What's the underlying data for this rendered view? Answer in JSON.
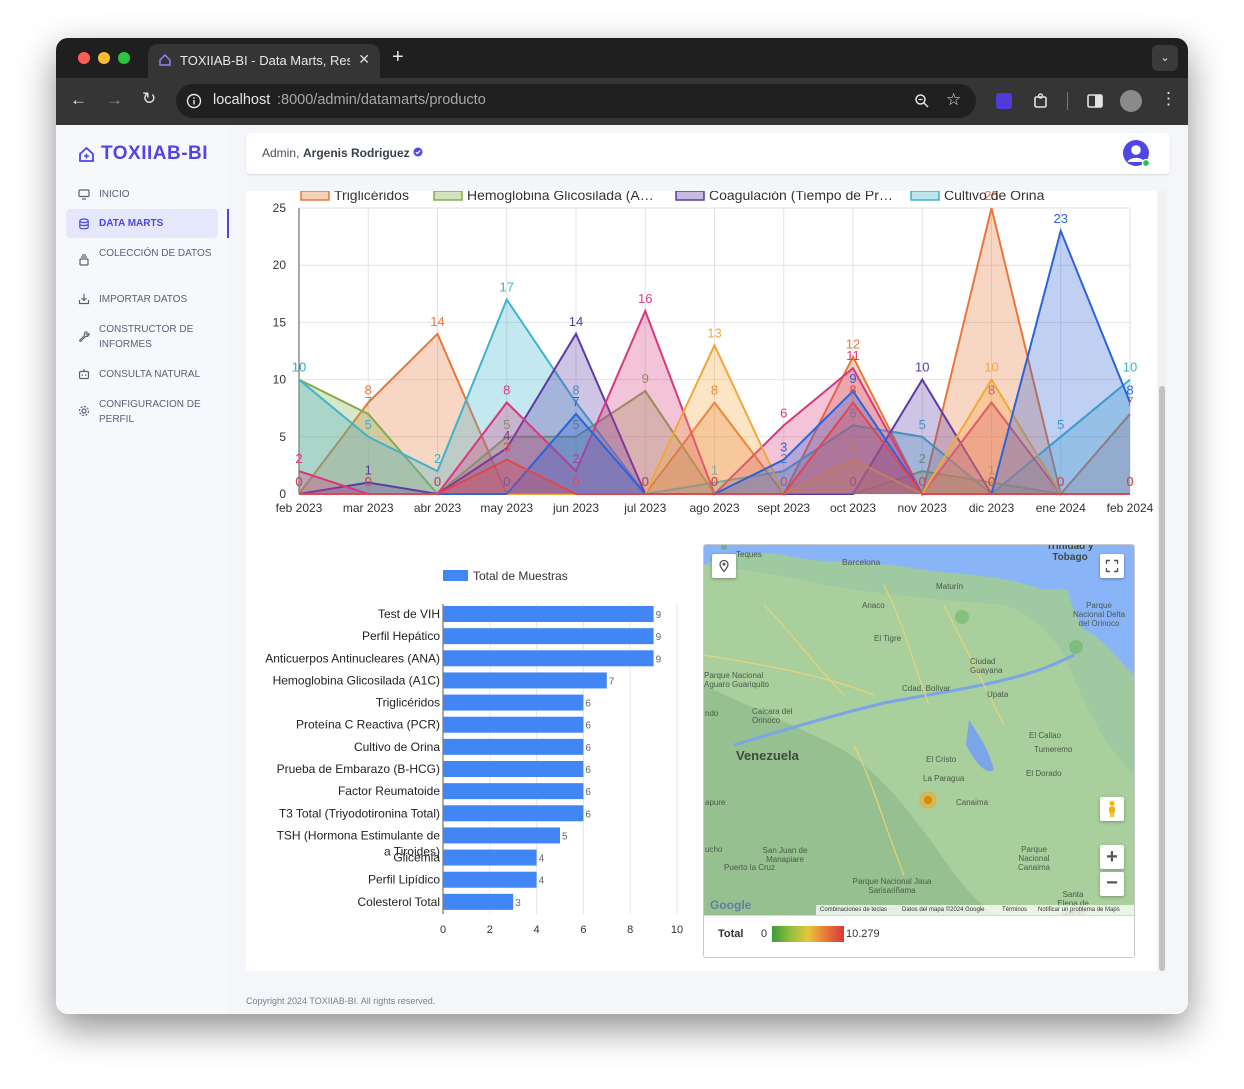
{
  "browser": {
    "tab_title": "TOXIIAB-BI - Data Marts, Res",
    "url_host": "localhost",
    "url_path": ":8000/admin/datamarts/producto"
  },
  "sidebar": {
    "logo": "TOXIIAB-BI",
    "items": [
      {
        "label": "INICIO",
        "icon": "monitor-icon"
      },
      {
        "label": "DATA MARTS",
        "icon": "database-icon",
        "active": true
      },
      {
        "label": "COLECCIÓN DE DATOS",
        "icon": "collection-icon"
      },
      {
        "label": "IMPORTAR DATOS",
        "icon": "import-icon"
      },
      {
        "label": "CONSTRUCTOR DE INFORMES",
        "icon": "wrench-icon"
      },
      {
        "label": "CONSULTA NATURAL",
        "icon": "bot-icon"
      },
      {
        "label": "CONFIGURACION DE PERFIL",
        "icon": "gear-icon"
      }
    ]
  },
  "header": {
    "greeting": "Admin,",
    "user": "Argenis Rodriguez"
  },
  "footer": "Copyright 2024 TOXIIAB-BI. All rights reserved.",
  "colors": {
    "accent": "#4f46e5",
    "bar": "#4285f4"
  },
  "chart_data": [
    {
      "type": "area",
      "legend_visible": [
        "Triglicéridos",
        "Hemoglobina Glicosilada (A…",
        "Coagulación (Tiempo de Pr…",
        "Cultivo de Orina"
      ],
      "x": [
        "feb 2023",
        "mar 2023",
        "abr 2023",
        "may 2023",
        "jun 2023",
        "jul 2023",
        "ago 2023",
        "sept 2023",
        "oct 2023",
        "nov 2023",
        "dic 2023",
        "ene 2024",
        "feb 2024"
      ],
      "ylim": [
        0,
        25
      ],
      "yticks": [
        0,
        5,
        10,
        15,
        20,
        25
      ],
      "series": [
        {
          "color": "#e8773a",
          "values": [
            0,
            8,
            14,
            0,
            0,
            0,
            8,
            0,
            12,
            0,
            25,
            0,
            7
          ]
        },
        {
          "color": "#84ad49",
          "values": [
            10,
            7,
            0,
            5,
            5,
            9,
            0,
            0,
            0,
            2,
            1,
            0,
            0
          ]
        },
        {
          "color": "#3db3cc",
          "values": [
            10,
            5,
            2,
            17,
            8,
            0,
            1,
            2,
            6,
            5,
            0,
            5,
            10
          ]
        },
        {
          "color": "#5e3aa6",
          "values": [
            0,
            1,
            0,
            4,
            14,
            0,
            0,
            0,
            0,
            10,
            0,
            0,
            0
          ]
        },
        {
          "color": "#d8387f",
          "values": [
            2,
            0,
            0,
            8,
            2,
            16,
            0,
            6,
            11,
            0,
            8,
            0,
            0
          ]
        },
        {
          "color": "#f1a83a",
          "values": [
            0,
            0,
            0,
            0,
            0,
            0,
            13,
            0,
            3,
            0,
            10,
            0,
            0
          ]
        },
        {
          "color": "#2d63d8",
          "values": [
            0,
            0,
            0,
            0,
            7,
            0,
            0,
            3,
            9,
            0,
            0,
            23,
            8
          ]
        },
        {
          "color": "#e0474c",
          "values": [
            0,
            0,
            0,
            3,
            0,
            0,
            0,
            0,
            8,
            0,
            0,
            0,
            0
          ]
        }
      ]
    },
    {
      "type": "bar",
      "orientation": "horizontal",
      "legend": "Total de Muestras",
      "categories": [
        "Test de VIH",
        "Perfil Hepático",
        "Anticuerpos Antinucleares (ANA)",
        "Hemoglobina Glicosilada (A1C)",
        "Triglicéridos",
        "Proteína C Reactiva (PCR)",
        "Cultivo de Orina",
        "Prueba de Embarazo (B-HCG)",
        "Factor Reumatoide",
        "T3 Total (Triyodotironina Total)",
        "TSH (Hormona Estimulante de la Tiroides)",
        "Glicemia",
        "Perfil Lipídico",
        "Colesterol Total"
      ],
      "values": [
        9,
        9,
        9,
        7,
        6,
        6,
        6,
        6,
        6,
        6,
        5,
        4,
        4,
        3
      ],
      "xlim": [
        0,
        10
      ],
      "xticks": [
        0,
        2,
        4,
        6,
        8,
        10
      ]
    }
  ],
  "map": {
    "labels": [
      "Barcelona",
      "Maturín",
      "Anaco",
      "El Tigre",
      "Ciudad Guayana",
      "Cdad. Bolívar",
      "Upata",
      "Venezuela",
      "Caicara del Orinoco",
      "El Callao",
      "Tumeremo",
      "El Dorado",
      "El Cristo",
      "La Paragua",
      "Canaima",
      "San Juan de Manapiare",
      "Puerto la Cruz",
      "Parque Nacional Jaua Sarisariñama",
      "Parque Nacional Canaima",
      "Santa Elena de Uairén",
      "Trinidad y Tobago",
      "Parque Nacional Delta del Orinoco",
      "Parque Nacional Aguaro Guariquito",
      "Teques",
      "ndo",
      "apure",
      "ucho"
    ],
    "attribution": [
      "Combinaciones de teclas",
      "Datos del mapa ©2024 Google",
      "Términos",
      "Notificar un problema de Maps"
    ],
    "google": "Google",
    "legend_title": "Total",
    "legend_min": "0",
    "legend_max": "10.279"
  }
}
